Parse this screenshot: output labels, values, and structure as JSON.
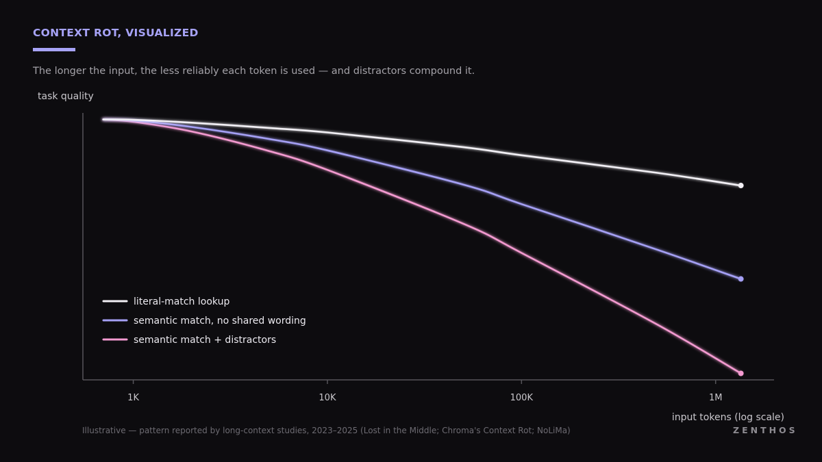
{
  "header": {
    "kicker": "CONTEXT ROT, VISUALIZED",
    "subtitle": "The longer the input, the less reliably each token is used — and distractors compound it."
  },
  "footer": {
    "source": "Illustrative — pattern reported by long-context studies, 2023–2025 (Lost in the Middle; Chroma's Context Rot; NoLiMa)",
    "brand": "ZENTHOS"
  },
  "colors": {
    "background": "#0d0c0f",
    "accent": "#a7a3f7",
    "literal": "#f2f0f5",
    "semantic": "#a5a0f5",
    "distractors": "#f39ad0"
  },
  "chart_data": {
    "type": "line",
    "ylabel": "task quality",
    "xlabel": "input tokens (log scale)",
    "x_scale": "log",
    "xlim": [
      550,
      2000000
    ],
    "ylim": [
      0.2,
      1.02
    ],
    "x_ticks": [
      1000,
      10000,
      100000,
      1000000
    ],
    "x_tick_labels": [
      "1K",
      "10K",
      "100K",
      "1M"
    ],
    "y_ticks_shown": false,
    "grid": false,
    "legend_position": "bottom-left",
    "series": [
      {
        "name": "literal-match lookup",
        "color": "#f2f0f5",
        "x": [
          700,
          1000,
          2000,
          5000,
          10000,
          50000,
          100000,
          500000,
          1350000
        ],
        "y": [
          1.0,
          0.999,
          0.99,
          0.974,
          0.96,
          0.915,
          0.89,
          0.836,
          0.797
        ]
      },
      {
        "name": "semantic match, no shared wording",
        "color": "#a5a0f5",
        "x": [
          700,
          1000,
          2000,
          5000,
          10000,
          50000,
          100000,
          500000,
          1350000
        ],
        "y": [
          1.0,
          0.997,
          0.977,
          0.94,
          0.905,
          0.8,
          0.74,
          0.6,
          0.51
        ]
      },
      {
        "name": "semantic match + distractors",
        "color": "#f39ad0",
        "x": [
          700,
          1000,
          2000,
          5000,
          10000,
          50000,
          100000,
          500000,
          1350000
        ],
        "y": [
          1.0,
          0.993,
          0.963,
          0.903,
          0.845,
          0.68,
          0.59,
          0.37,
          0.22
        ]
      }
    ]
  }
}
